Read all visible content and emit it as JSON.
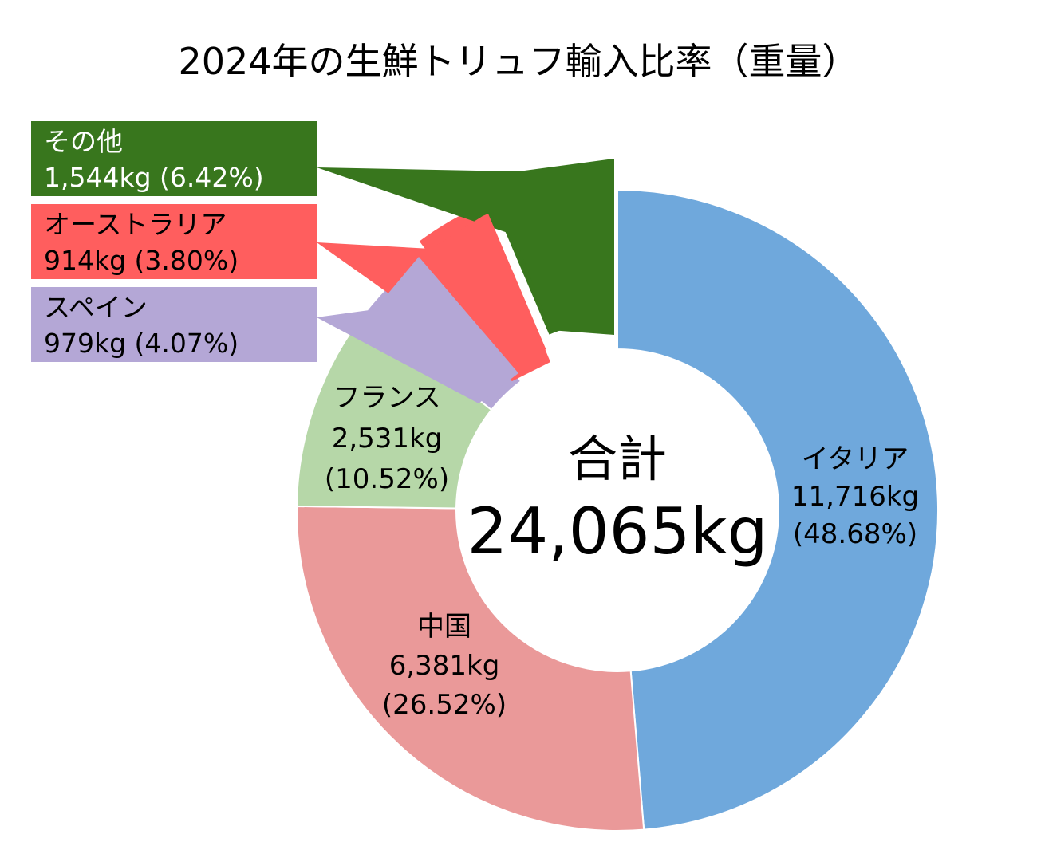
{
  "chart_data": {
    "type": "pie",
    "title": "2024年の生鮮トリュフ輸入比率（重量）",
    "center": {
      "label": "合計",
      "value": "24,065kg"
    },
    "unit": "kg",
    "slices": [
      {
        "name": "イタリア",
        "value": 11716,
        "value_label": "11,716kg",
        "percent_label": "(48.68%)",
        "color": "#6FA8DC"
      },
      {
        "name": "中国",
        "value": 6381,
        "value_label": "6,381kg",
        "percent_label": "(26.52%)",
        "color": "#EA9999"
      },
      {
        "name": "フランス",
        "value": 2531,
        "value_label": "2,531kg",
        "percent_label": "(10.52%)",
        "color": "#B6D7A8"
      },
      {
        "name": "スペイン",
        "value": 979,
        "value_label": "979kg (4.07%)",
        "percent_label": "",
        "color": "#B4A7D6"
      },
      {
        "name": "オーストラリア",
        "value": 914,
        "value_label": "914kg (3.80%)",
        "percent_label": "",
        "color": "#FF5E5E"
      },
      {
        "name": "その他",
        "value": 1544,
        "value_label": "1,544kg (6.42%)",
        "percent_label": "",
        "color": "#38761D"
      }
    ]
  }
}
